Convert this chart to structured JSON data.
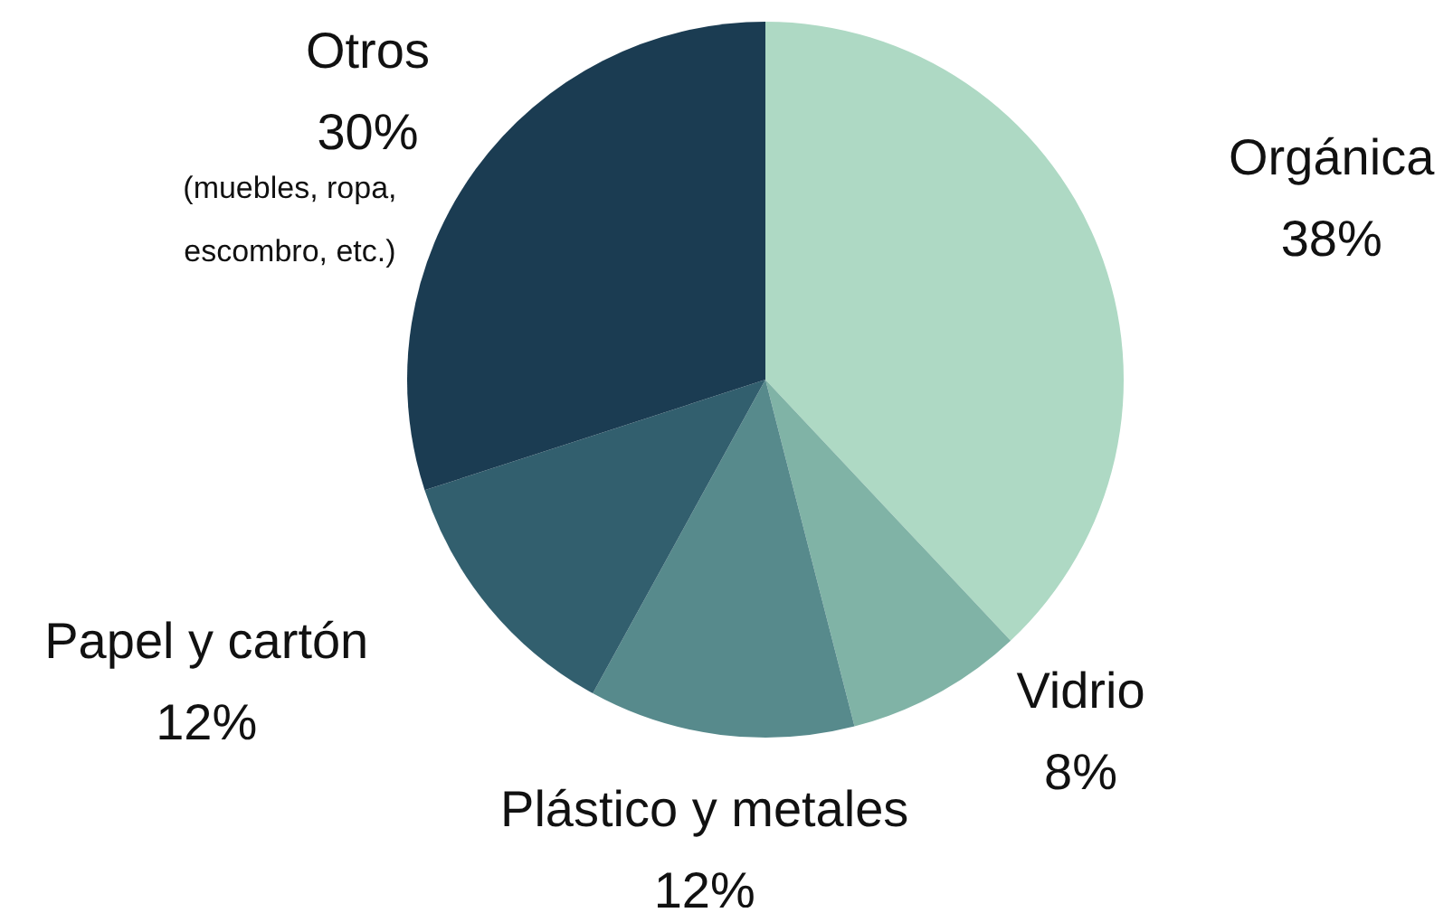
{
  "chart_data": {
    "type": "pie",
    "categories": [
      "Orgánica",
      "Vidrio",
      "Plástico y metales",
      "Papel y cartón",
      "Otros"
    ],
    "values": [
      38,
      8,
      12,
      12,
      30
    ],
    "colors": [
      "#aed9c4",
      "#80b3a6",
      "#578a8c",
      "#325f6e",
      "#1b3c52"
    ],
    "value_labels": [
      "38%",
      "8%",
      "12%",
      "12%",
      "30%"
    ],
    "annotations": [
      "(muebles, ropa, escombro, etc.)"
    ]
  }
}
